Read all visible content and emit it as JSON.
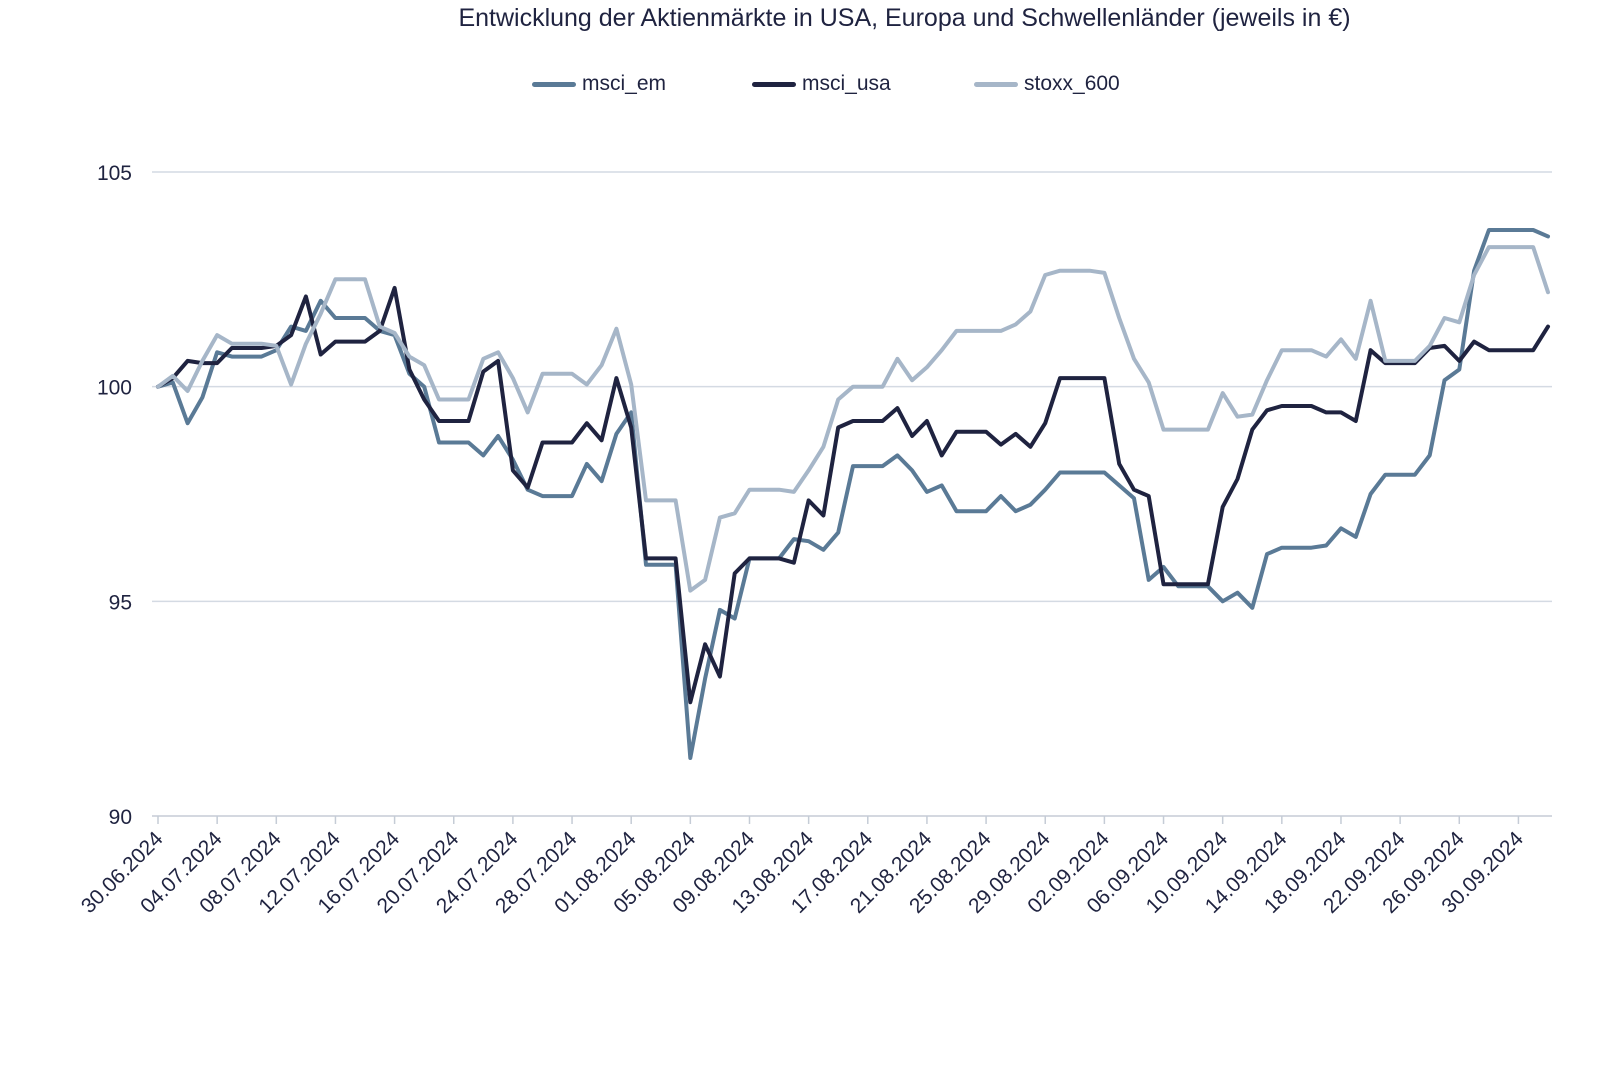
{
  "chart_data": {
    "type": "line",
    "title": "Entwicklung der Aktienmärkte in USA, Europa und Schwellenländer (jeweils in €)",
    "xlabel": "",
    "ylabel": "",
    "ylim": [
      90,
      106
    ],
    "yticks": [
      90,
      95,
      100,
      105
    ],
    "grid": true,
    "legend_position": "top-center",
    "xticks": [
      "30.06.2024",
      "04.07.2024",
      "08.07.2024",
      "12.07.2024",
      "16.07.2024",
      "20.07.2024",
      "24.07.2024",
      "28.07.2024",
      "01.08.2024",
      "05.08.2024",
      "09.08.2024",
      "13.08.2024",
      "17.08.2024",
      "21.08.2024",
      "25.08.2024",
      "29.08.2024",
      "02.09.2024",
      "06.09.2024",
      "10.09.2024",
      "14.09.2024",
      "18.09.2024",
      "22.09.2024",
      "26.09.2024",
      "30.09.2024"
    ],
    "series": [
      {
        "name": "msci_em",
        "color": "#5a7a96",
        "points": [
          [
            0,
            100.0
          ],
          [
            1,
            100.1
          ],
          [
            2,
            99.15
          ],
          [
            3,
            99.75
          ],
          [
            4,
            100.8
          ],
          [
            5,
            100.7
          ],
          [
            6,
            100.7
          ],
          [
            7,
            100.7
          ],
          [
            8,
            100.85
          ],
          [
            9,
            101.4
          ],
          [
            10,
            101.3
          ],
          [
            11,
            102.0
          ],
          [
            12,
            101.6
          ],
          [
            13,
            101.6
          ],
          [
            14,
            101.6
          ],
          [
            15,
            101.3
          ],
          [
            16,
            101.2
          ],
          [
            17,
            100.3
          ],
          [
            18,
            100.0
          ],
          [
            19,
            98.7
          ],
          [
            20,
            98.7
          ],
          [
            21,
            98.7
          ],
          [
            22,
            98.4
          ],
          [
            23,
            98.85
          ],
          [
            24,
            98.3
          ],
          [
            25,
            97.6
          ],
          [
            26,
            97.45
          ],
          [
            27,
            97.45
          ],
          [
            28,
            97.45
          ],
          [
            29,
            98.2
          ],
          [
            30,
            97.8
          ],
          [
            31,
            98.9
          ],
          [
            32,
            99.4
          ],
          [
            33,
            95.85
          ],
          [
            34,
            95.85
          ],
          [
            35,
            95.85
          ],
          [
            36,
            91.35
          ],
          [
            37,
            93.2
          ],
          [
            38,
            94.8
          ],
          [
            39,
            94.6
          ],
          [
            40,
            96.0
          ],
          [
            41,
            96.0
          ],
          [
            42,
            96.0
          ],
          [
            43,
            96.45
          ],
          [
            44,
            96.4
          ],
          [
            45,
            96.2
          ],
          [
            46,
            96.6
          ],
          [
            47,
            98.15
          ],
          [
            48,
            98.15
          ],
          [
            49,
            98.15
          ],
          [
            50,
            98.4
          ],
          [
            51,
            98.05
          ],
          [
            52,
            97.55
          ],
          [
            53,
            97.7
          ],
          [
            54,
            97.1
          ],
          [
            55,
            97.1
          ],
          [
            56,
            97.1
          ],
          [
            57,
            97.45
          ],
          [
            58,
            97.1
          ],
          [
            59,
            97.25
          ],
          [
            60,
            97.6
          ],
          [
            61,
            98.0
          ],
          [
            62,
            98.0
          ],
          [
            63,
            98.0
          ],
          [
            64,
            98.0
          ],
          [
            65,
            97.7
          ],
          [
            66,
            97.4
          ],
          [
            67,
            95.5
          ],
          [
            68,
            95.8
          ],
          [
            69,
            95.35
          ],
          [
            70,
            95.35
          ],
          [
            71,
            95.35
          ],
          [
            72,
            95.0
          ],
          [
            73,
            95.2
          ],
          [
            74,
            94.85
          ],
          [
            75,
            96.1
          ],
          [
            76,
            96.25
          ],
          [
            77,
            96.25
          ],
          [
            78,
            96.25
          ],
          [
            79,
            96.3
          ],
          [
            80,
            96.7
          ],
          [
            81,
            96.5
          ],
          [
            82,
            97.5
          ],
          [
            83,
            97.95
          ],
          [
            84,
            97.95
          ],
          [
            85,
            97.95
          ],
          [
            86,
            98.4
          ],
          [
            87,
            100.15
          ],
          [
            88,
            100.4
          ],
          [
            89,
            102.7
          ],
          [
            90,
            103.65
          ],
          [
            91,
            103.65
          ],
          [
            92,
            103.65
          ],
          [
            93,
            103.65
          ],
          [
            94,
            103.5
          ]
        ]
      },
      {
        "name": "msci_usa",
        "color": "#1f2340",
        "points": [
          [
            0,
            100.0
          ],
          [
            1,
            100.2
          ],
          [
            2,
            100.6
          ],
          [
            3,
            100.55
          ],
          [
            4,
            100.55
          ],
          [
            5,
            100.9
          ],
          [
            6,
            100.9
          ],
          [
            7,
            100.9
          ],
          [
            8,
            100.95
          ],
          [
            9,
            101.2
          ],
          [
            10,
            102.1
          ],
          [
            11,
            100.75
          ],
          [
            12,
            101.05
          ],
          [
            13,
            101.05
          ],
          [
            14,
            101.05
          ],
          [
            15,
            101.3
          ],
          [
            16,
            102.3
          ],
          [
            17,
            100.4
          ],
          [
            18,
            99.7
          ],
          [
            19,
            99.2
          ],
          [
            20,
            99.2
          ],
          [
            21,
            99.2
          ],
          [
            22,
            100.35
          ],
          [
            23,
            100.6
          ],
          [
            24,
            98.05
          ],
          [
            25,
            97.65
          ],
          [
            26,
            98.7
          ],
          [
            27,
            98.7
          ],
          [
            28,
            98.7
          ],
          [
            29,
            99.15
          ],
          [
            30,
            98.75
          ],
          [
            31,
            100.2
          ],
          [
            32,
            99.05
          ],
          [
            33,
            96.0
          ],
          [
            34,
            96.0
          ],
          [
            35,
            96.0
          ],
          [
            36,
            92.65
          ],
          [
            37,
            94.0
          ],
          [
            38,
            93.25
          ],
          [
            39,
            95.65
          ],
          [
            40,
            96.0
          ],
          [
            41,
            96.0
          ],
          [
            42,
            96.0
          ],
          [
            43,
            95.9
          ],
          [
            44,
            97.35
          ],
          [
            45,
            97.0
          ],
          [
            46,
            99.05
          ],
          [
            47,
            99.2
          ],
          [
            48,
            99.2
          ],
          [
            49,
            99.2
          ],
          [
            50,
            99.5
          ],
          [
            51,
            98.85
          ],
          [
            52,
            99.2
          ],
          [
            53,
            98.4
          ],
          [
            54,
            98.95
          ],
          [
            55,
            98.95
          ],
          [
            56,
            98.95
          ],
          [
            57,
            98.65
          ],
          [
            58,
            98.9
          ],
          [
            59,
            98.6
          ],
          [
            60,
            99.15
          ],
          [
            61,
            100.2
          ],
          [
            62,
            100.2
          ],
          [
            63,
            100.2
          ],
          [
            64,
            100.2
          ],
          [
            65,
            98.2
          ],
          [
            66,
            97.6
          ],
          [
            67,
            97.45
          ],
          [
            68,
            95.4
          ],
          [
            69,
            95.4
          ],
          [
            70,
            95.4
          ],
          [
            71,
            95.4
          ],
          [
            72,
            97.2
          ],
          [
            73,
            97.85
          ],
          [
            74,
            99.0
          ],
          [
            75,
            99.45
          ],
          [
            76,
            99.55
          ],
          [
            77,
            99.55
          ],
          [
            78,
            99.55
          ],
          [
            79,
            99.4
          ],
          [
            80,
            99.4
          ],
          [
            81,
            99.2
          ],
          [
            82,
            100.85
          ],
          [
            83,
            100.55
          ],
          [
            84,
            100.55
          ],
          [
            85,
            100.55
          ],
          [
            86,
            100.9
          ],
          [
            87,
            100.95
          ],
          [
            88,
            100.6
          ],
          [
            89,
            101.05
          ],
          [
            90,
            100.85
          ],
          [
            91,
            100.85
          ],
          [
            92,
            100.85
          ],
          [
            93,
            100.85
          ],
          [
            94,
            101.4
          ]
        ]
      },
      {
        "name": "stoxx_600",
        "color": "#a6b6c8",
        "points": [
          [
            0,
            100.0
          ],
          [
            1,
            100.25
          ],
          [
            2,
            99.9
          ],
          [
            3,
            100.6
          ],
          [
            4,
            101.2
          ],
          [
            5,
            101.0
          ],
          [
            6,
            101.0
          ],
          [
            7,
            101.0
          ],
          [
            8,
            100.95
          ],
          [
            9,
            100.05
          ],
          [
            10,
            101.0
          ],
          [
            11,
            101.7
          ],
          [
            12,
            102.5
          ],
          [
            13,
            102.5
          ],
          [
            14,
            102.5
          ],
          [
            15,
            101.4
          ],
          [
            16,
            101.25
          ],
          [
            17,
            100.7
          ],
          [
            18,
            100.5
          ],
          [
            19,
            99.7
          ],
          [
            20,
            99.7
          ],
          [
            21,
            99.7
          ],
          [
            22,
            100.65
          ],
          [
            23,
            100.8
          ],
          [
            24,
            100.2
          ],
          [
            25,
            99.4
          ],
          [
            26,
            100.3
          ],
          [
            27,
            100.3
          ],
          [
            28,
            100.3
          ],
          [
            29,
            100.05
          ],
          [
            30,
            100.5
          ],
          [
            31,
            101.35
          ],
          [
            32,
            100.05
          ],
          [
            33,
            97.35
          ],
          [
            34,
            97.35
          ],
          [
            35,
            97.35
          ],
          [
            36,
            95.25
          ],
          [
            37,
            95.5
          ],
          [
            38,
            96.95
          ],
          [
            39,
            97.05
          ],
          [
            40,
            97.6
          ],
          [
            41,
            97.6
          ],
          [
            42,
            97.6
          ],
          [
            43,
            97.55
          ],
          [
            44,
            98.05
          ],
          [
            45,
            98.6
          ],
          [
            46,
            99.7
          ],
          [
            47,
            100.0
          ],
          [
            48,
            100.0
          ],
          [
            49,
            100.0
          ],
          [
            50,
            100.65
          ],
          [
            51,
            100.15
          ],
          [
            52,
            100.45
          ],
          [
            53,
            100.85
          ],
          [
            54,
            101.3
          ],
          [
            55,
            101.3
          ],
          [
            56,
            101.3
          ],
          [
            57,
            101.3
          ],
          [
            58,
            101.45
          ],
          [
            59,
            101.75
          ],
          [
            60,
            102.6
          ],
          [
            61,
            102.7
          ],
          [
            62,
            102.7
          ],
          [
            63,
            102.7
          ],
          [
            64,
            102.65
          ],
          [
            65,
            101.6
          ],
          [
            66,
            100.65
          ],
          [
            67,
            100.1
          ],
          [
            68,
            99.0
          ],
          [
            69,
            99.0
          ],
          [
            70,
            99.0
          ],
          [
            71,
            99.0
          ],
          [
            72,
            99.85
          ],
          [
            73,
            99.3
          ],
          [
            74,
            99.35
          ],
          [
            75,
            100.15
          ],
          [
            76,
            100.85
          ],
          [
            77,
            100.85
          ],
          [
            78,
            100.85
          ],
          [
            79,
            100.7
          ],
          [
            80,
            101.1
          ],
          [
            81,
            100.65
          ],
          [
            82,
            102.0
          ],
          [
            83,
            100.6
          ],
          [
            84,
            100.6
          ],
          [
            85,
            100.6
          ],
          [
            86,
            100.95
          ],
          [
            87,
            101.6
          ],
          [
            88,
            101.5
          ],
          [
            89,
            102.6
          ],
          [
            90,
            103.25
          ],
          [
            91,
            103.25
          ],
          [
            92,
            103.25
          ],
          [
            93,
            103.25
          ],
          [
            94,
            102.2
          ]
        ]
      }
    ]
  }
}
